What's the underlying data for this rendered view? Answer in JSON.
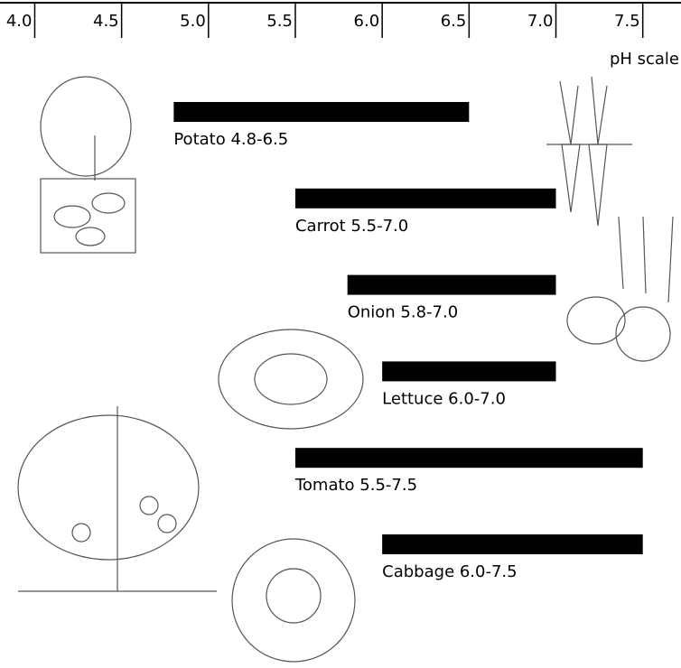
{
  "chart_data": {
    "type": "range_bar",
    "x_label": "pH scale",
    "categories": [
      "Potato 4.8-6.5",
      "Carrot 5.5-7.0",
      "Onion 5.8-7.0",
      "Lettuce 6.0-7.0",
      "Tomato 5.5-7.5",
      "Cabbage 6.0-7.5"
    ],
    "low": [
      4.8,
      5.5,
      5.8,
      6.0,
      5.5,
      6.0
    ],
    "high": [
      6.5,
      7.0,
      7.0,
      7.0,
      7.5,
      7.5
    ],
    "color": "#000000",
    "xlim": [
      3.8,
      7.72
    ],
    "xticks": [
      {
        "value": 4,
        "label": "4.0"
      },
      4.5,
      {
        "value": 5,
        "label": "5.0"
      },
      5.5,
      {
        "value": 6,
        "label": "6.0"
      },
      6.5,
      {
        "value": 7,
        "label": "7.0"
      },
      7.5
    ]
  }
}
